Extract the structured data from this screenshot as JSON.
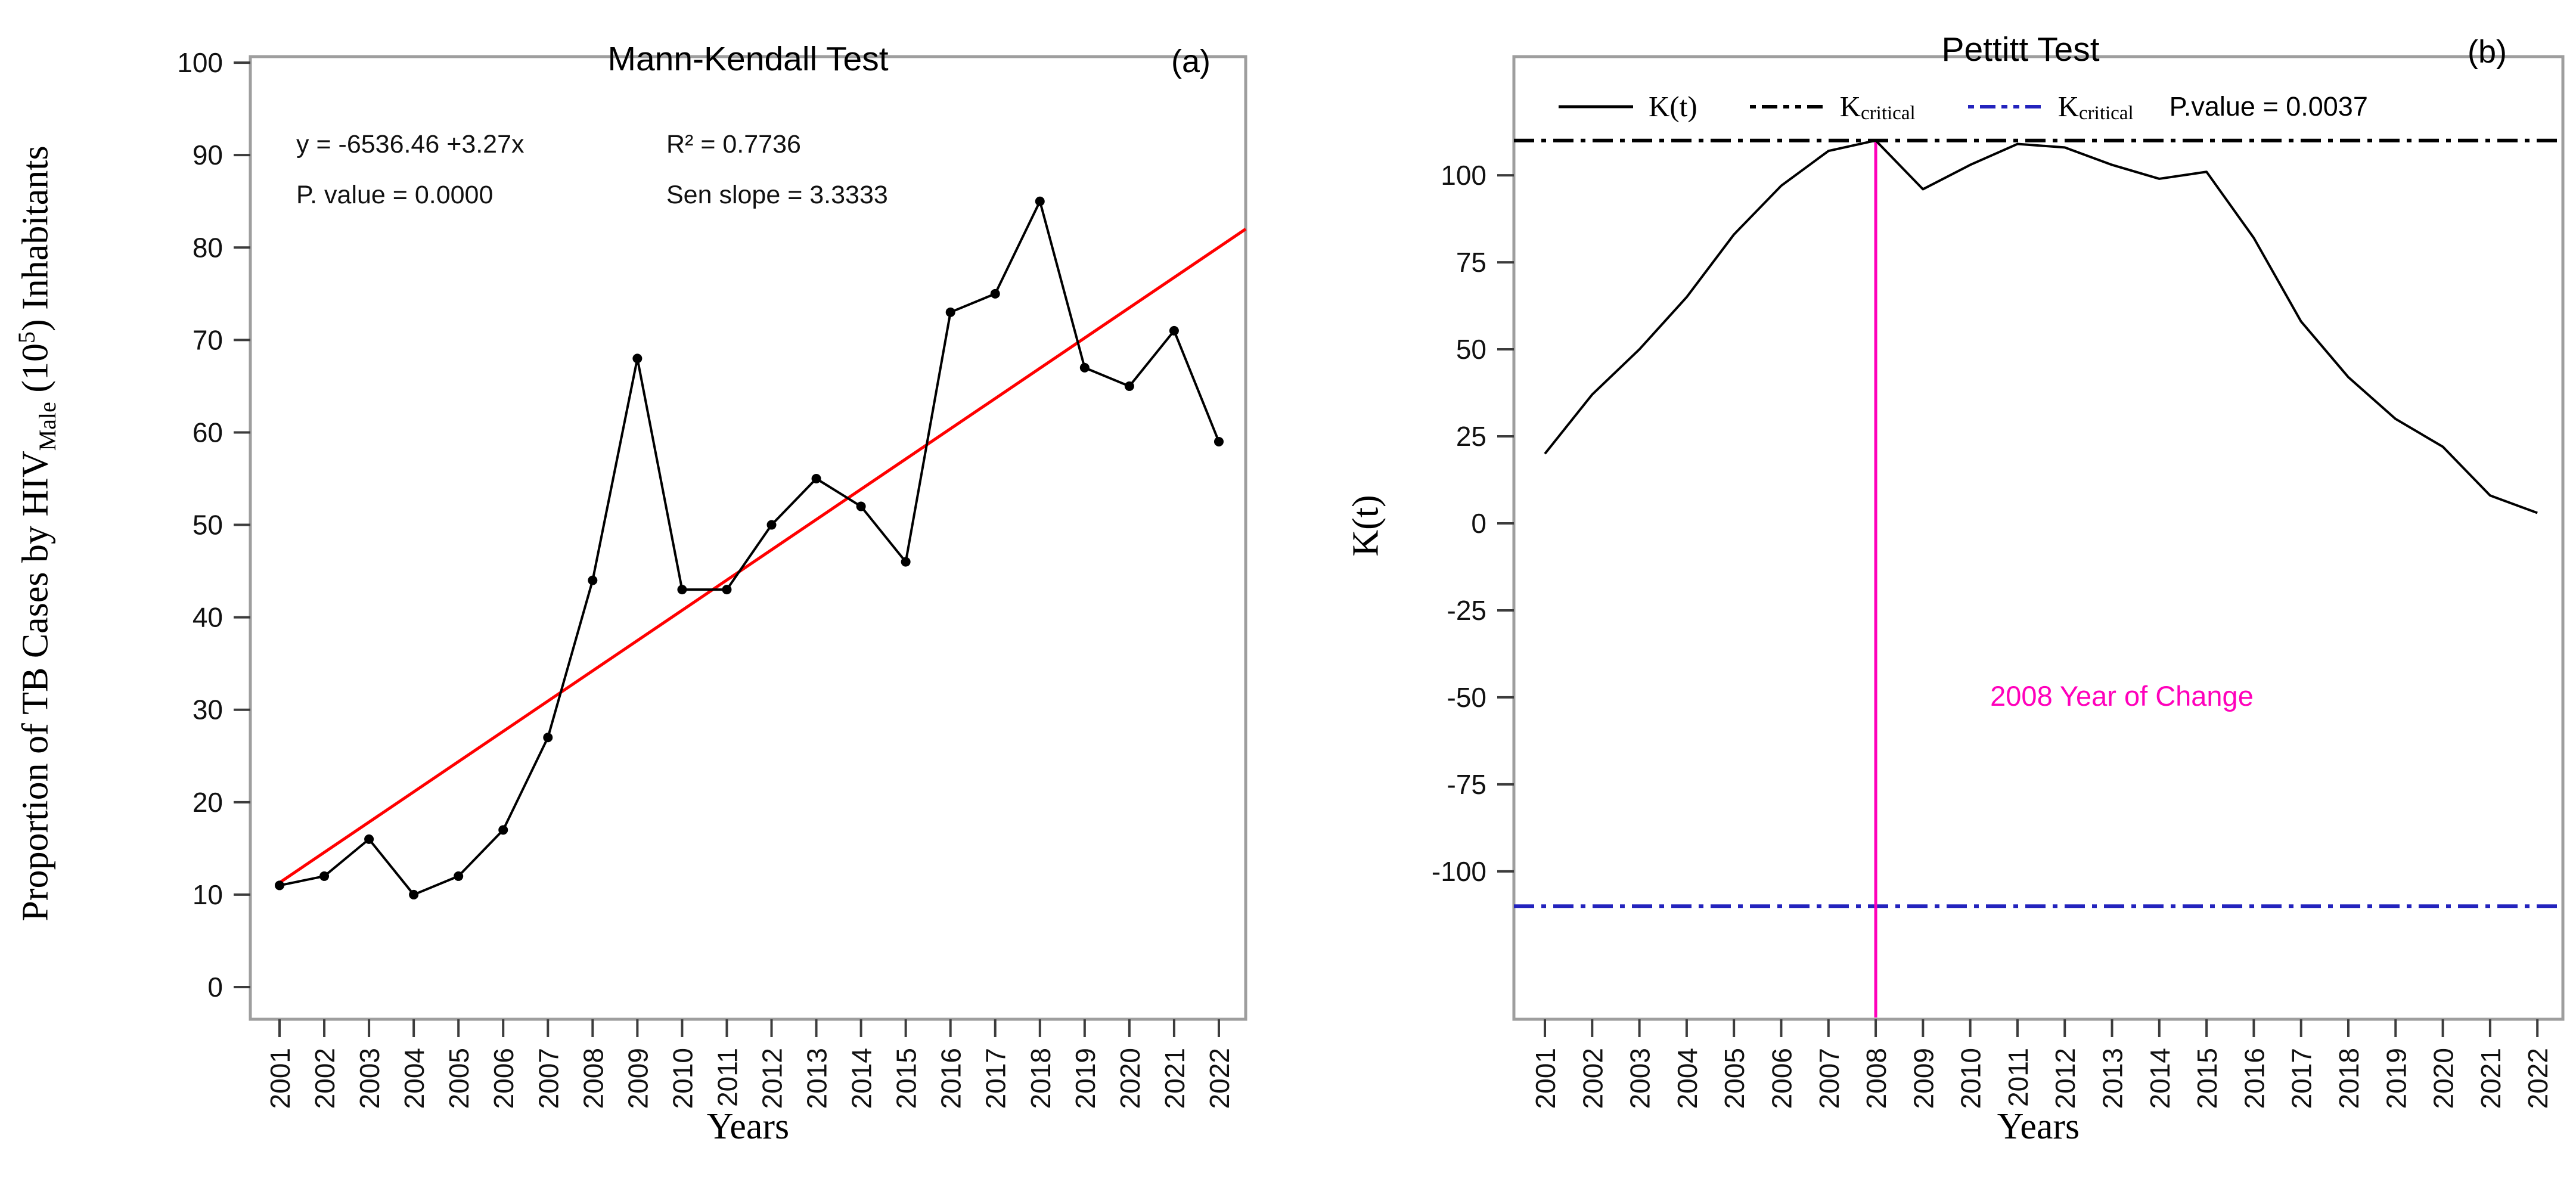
{
  "colors": {
    "black": "#000000",
    "red": "#ff0000",
    "blue": "#2323bd",
    "magenta": "#ff00bb",
    "border": "#9e9e9e",
    "tick": "#3c3c3c"
  },
  "panel_a": {
    "title": "Mann-Kendall Test",
    "panel_label": "(a)",
    "stats": {
      "equation": "y = -6536.46 +3.27x",
      "p_value": "P. value = 0.0000",
      "r_squared": "R² = 0.7736",
      "sen_slope": "Sen slope = 3.3333"
    },
    "xlabel": "Years",
    "ylabel": {
      "part1": "Proportion of TB Cases by HIV",
      "sub": "Male",
      "part2": " (10",
      "sup": "5",
      "part3": ") Inhabitants"
    }
  },
  "panel_b": {
    "title": "Pettitt Test",
    "panel_label": "(b)",
    "xlabel": "Years",
    "ylabel": "K(t)",
    "legend": {
      "kt_label": "K(t)",
      "kcrit_upper_label": "K",
      "kcrit_upper_sub": "critical",
      "kcrit_lower_label": "K",
      "kcrit_lower_sub": "critical",
      "p_value": "P.value = 0.0037"
    },
    "change_note": "2008 Year of Change"
  },
  "chart_data": [
    {
      "type": "line",
      "title": "Mann-Kendall Test",
      "xlabel": "Years",
      "ylabel": "Proportion of TB Cases by HIV_Male (10^5) Inhabitants",
      "x": [
        2001,
        2002,
        2003,
        2004,
        2005,
        2006,
        2007,
        2008,
        2009,
        2010,
        2011,
        2012,
        2013,
        2014,
        2015,
        2016,
        2017,
        2018,
        2019,
        2020,
        2021,
        2022
      ],
      "series": [
        {
          "name": "Proportion of TB cases by HIV (male)",
          "color": "#000000",
          "marker": "circle",
          "values": [
            11,
            12,
            16,
            10,
            12,
            17,
            27,
            44,
            68,
            43,
            43,
            50,
            55,
            52,
            46,
            73,
            75,
            85,
            67,
            65,
            71,
            59
          ]
        }
      ],
      "trend_line": {
        "name": "Linear trend (Sen slope)",
        "color": "#ff0000",
        "x": [
          2001,
          2022.6
        ],
        "y": [
          11.3,
          82.0
        ]
      },
      "ylim": [
        -3.48,
        100.65
      ],
      "yticks": [
        0,
        10,
        20,
        30,
        40,
        50,
        60,
        70,
        80,
        90,
        100
      ],
      "grid": false,
      "annotations": [
        "y = -6536.46 +3.27x",
        "P. value = 0.0000",
        "R² = 0.7736",
        "Sen slope = 3.3333"
      ]
    },
    {
      "type": "line",
      "title": "Pettitt Test",
      "xlabel": "Years",
      "ylabel": "K(t)",
      "x": [
        2001,
        2002,
        2003,
        2004,
        2005,
        2006,
        2007,
        2008,
        2009,
        2010,
        2011,
        2012,
        2013,
        2014,
        2015,
        2016,
        2017,
        2018,
        2019,
        2020,
        2021,
        2022
      ],
      "series": [
        {
          "name": "K(t)",
          "color": "#000000",
          "marker": "none",
          "values": [
            20,
            37,
            50,
            65,
            83,
            97,
            107,
            110,
            96,
            103,
            109,
            108,
            103,
            99,
            101,
            82,
            58,
            42,
            30,
            22,
            8,
            3
          ]
        }
      ],
      "critical_upper": {
        "name": "K critical (upper)",
        "value": 110,
        "color": "#000000",
        "style": "dash-dot"
      },
      "critical_lower": {
        "name": "K critical (lower)",
        "value": -110,
        "color": "#2323bd",
        "style": "dash-dot"
      },
      "change_point": {
        "year": 2008,
        "label": "2008 Year of Change",
        "color": "#ff00bb"
      },
      "p_value": "0.0037",
      "ylim": [
        -142.5,
        134.1
      ],
      "yticks": [
        -100,
        -75,
        -50,
        -25,
        0,
        25,
        50,
        75,
        100
      ],
      "grid": false,
      "legend_position": "top"
    }
  ]
}
